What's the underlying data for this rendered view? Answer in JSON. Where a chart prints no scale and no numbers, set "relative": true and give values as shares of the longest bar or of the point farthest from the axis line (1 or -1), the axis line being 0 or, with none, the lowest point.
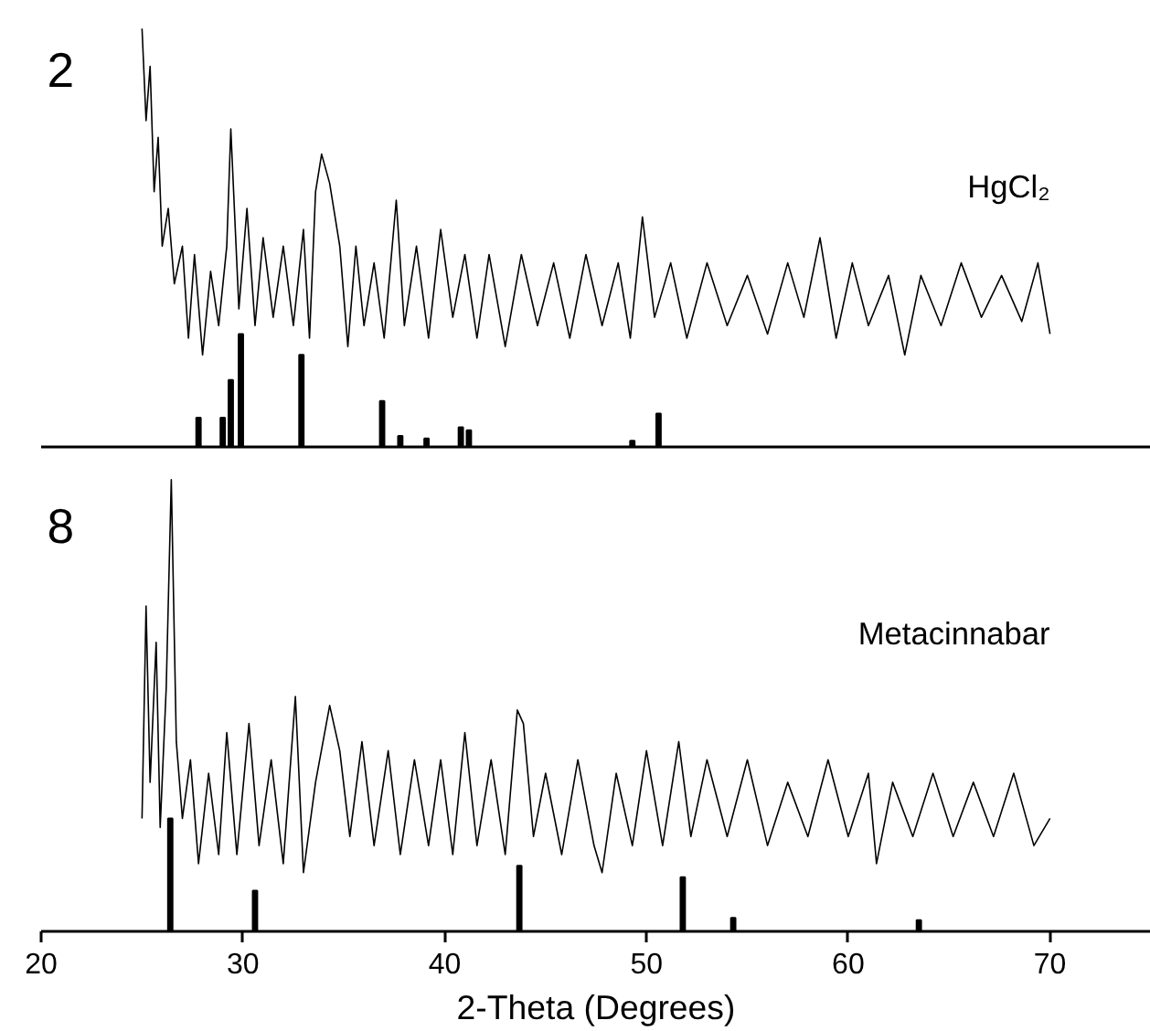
{
  "chart_data": [
    {
      "type": "line",
      "relative": true,
      "xlim": [
        20,
        75
      ],
      "tick_labels": false,
      "grid": false,
      "annotations": [
        "2",
        "HgCl₂"
      ],
      "series": [
        {
          "color": "#000000",
          "x": [
            25.0,
            25.2,
            25.4,
            25.6,
            25.8,
            26.0,
            26.3,
            26.6,
            27.0,
            27.3,
            27.6,
            28.0,
            28.4,
            28.8,
            29.2,
            29.4,
            29.8,
            30.2,
            30.6,
            31.0,
            31.5,
            32.0,
            32.5,
            33.0,
            33.3,
            33.6,
            33.9,
            34.3,
            34.8,
            35.2,
            35.6,
            36.0,
            36.5,
            37.0,
            37.6,
            38.0,
            38.6,
            39.2,
            39.8,
            40.4,
            41.0,
            41.6,
            42.2,
            43.0,
            43.8,
            44.6,
            45.4,
            46.2,
            47.0,
            47.8,
            48.6,
            49.2,
            49.8,
            50.4,
            51.2,
            52.0,
            53.0,
            54.0,
            55.0,
            56.0,
            57.0,
            57.8,
            58.6,
            59.4,
            60.2,
            61.0,
            62.0,
            62.8,
            63.6,
            64.6,
            65.6,
            66.6,
            67.6,
            68.6,
            69.4,
            70.0
          ],
          "values": [
            1.0,
            0.78,
            0.91,
            0.61,
            0.74,
            0.48,
            0.57,
            0.39,
            0.48,
            0.26,
            0.46,
            0.22,
            0.42,
            0.29,
            0.48,
            0.76,
            0.33,
            0.57,
            0.29,
            0.5,
            0.31,
            0.48,
            0.29,
            0.52,
            0.26,
            0.61,
            0.7,
            0.63,
            0.48,
            0.24,
            0.48,
            0.29,
            0.44,
            0.26,
            0.59,
            0.29,
            0.48,
            0.26,
            0.52,
            0.31,
            0.46,
            0.26,
            0.46,
            0.24,
            0.46,
            0.29,
            0.44,
            0.26,
            0.46,
            0.29,
            0.44,
            0.26,
            0.55,
            0.31,
            0.44,
            0.26,
            0.44,
            0.29,
            0.41,
            0.27,
            0.44,
            0.31,
            0.5,
            0.26,
            0.44,
            0.29,
            0.41,
            0.22,
            0.41,
            0.29,
            0.44,
            0.31,
            0.41,
            0.3,
            0.44,
            0.27
          ]
        },
        {
          "type": "bar",
          "color": "#000000",
          "x": [
            27.8,
            29.0,
            29.4,
            29.9,
            32.9,
            36.9,
            37.8,
            39.1,
            40.8,
            41.2,
            49.3,
            50.6
          ],
          "values": [
            0.07,
            0.07,
            0.16,
            0.27,
            0.22,
            0.11,
            0.026,
            0.02,
            0.047,
            0.04,
            0.015,
            0.08
          ]
        }
      ]
    },
    {
      "type": "line",
      "relative": true,
      "xlim": [
        20,
        75
      ],
      "xticks": [
        20,
        30,
        40,
        50,
        60,
        70
      ],
      "xlabel": "2-Theta (Degrees)",
      "tick_labels": "x",
      "grid": false,
      "annotations": [
        "8",
        "Metacinnabar"
      ],
      "series": [
        {
          "color": "#000000",
          "x": [
            25.0,
            25.2,
            25.4,
            25.7,
            25.9,
            26.2,
            26.45,
            26.7,
            27.0,
            27.4,
            27.8,
            28.3,
            28.8,
            29.2,
            29.7,
            30.3,
            30.8,
            31.4,
            32.0,
            32.6,
            33.0,
            33.6,
            34.3,
            34.8,
            35.3,
            35.9,
            36.5,
            37.2,
            37.8,
            38.5,
            39.2,
            39.8,
            40.4,
            41.0,
            41.6,
            42.3,
            43.0,
            43.6,
            43.9,
            44.4,
            45.0,
            45.8,
            46.6,
            47.4,
            47.8,
            48.5,
            49.3,
            50.0,
            50.8,
            51.6,
            52.2,
            53.0,
            54.0,
            55.0,
            56.0,
            57.0,
            58.0,
            59.0,
            60.0,
            61.0,
            61.4,
            62.2,
            63.2,
            64.2,
            65.2,
            66.2,
            67.2,
            68.2,
            69.2,
            70.0
          ],
          "values": [
            0.25,
            0.72,
            0.33,
            0.64,
            0.23,
            0.54,
            1.0,
            0.42,
            0.25,
            0.38,
            0.15,
            0.35,
            0.17,
            0.44,
            0.17,
            0.46,
            0.19,
            0.38,
            0.15,
            0.52,
            0.13,
            0.33,
            0.5,
            0.4,
            0.21,
            0.42,
            0.19,
            0.4,
            0.17,
            0.38,
            0.19,
            0.38,
            0.17,
            0.44,
            0.19,
            0.38,
            0.17,
            0.49,
            0.46,
            0.21,
            0.35,
            0.17,
            0.38,
            0.19,
            0.13,
            0.35,
            0.19,
            0.4,
            0.19,
            0.42,
            0.21,
            0.38,
            0.21,
            0.38,
            0.19,
            0.33,
            0.21,
            0.38,
            0.21,
            0.35,
            0.15,
            0.33,
            0.21,
            0.35,
            0.21,
            0.33,
            0.21,
            0.35,
            0.19,
            0.25
          ]
        },
        {
          "type": "bar",
          "color": "#000000",
          "x": [
            26.4,
            30.6,
            43.7,
            51.8,
            54.3,
            63.5
          ],
          "values": [
            0.25,
            0.09,
            0.145,
            0.12,
            0.03,
            0.025
          ]
        }
      ]
    }
  ]
}
